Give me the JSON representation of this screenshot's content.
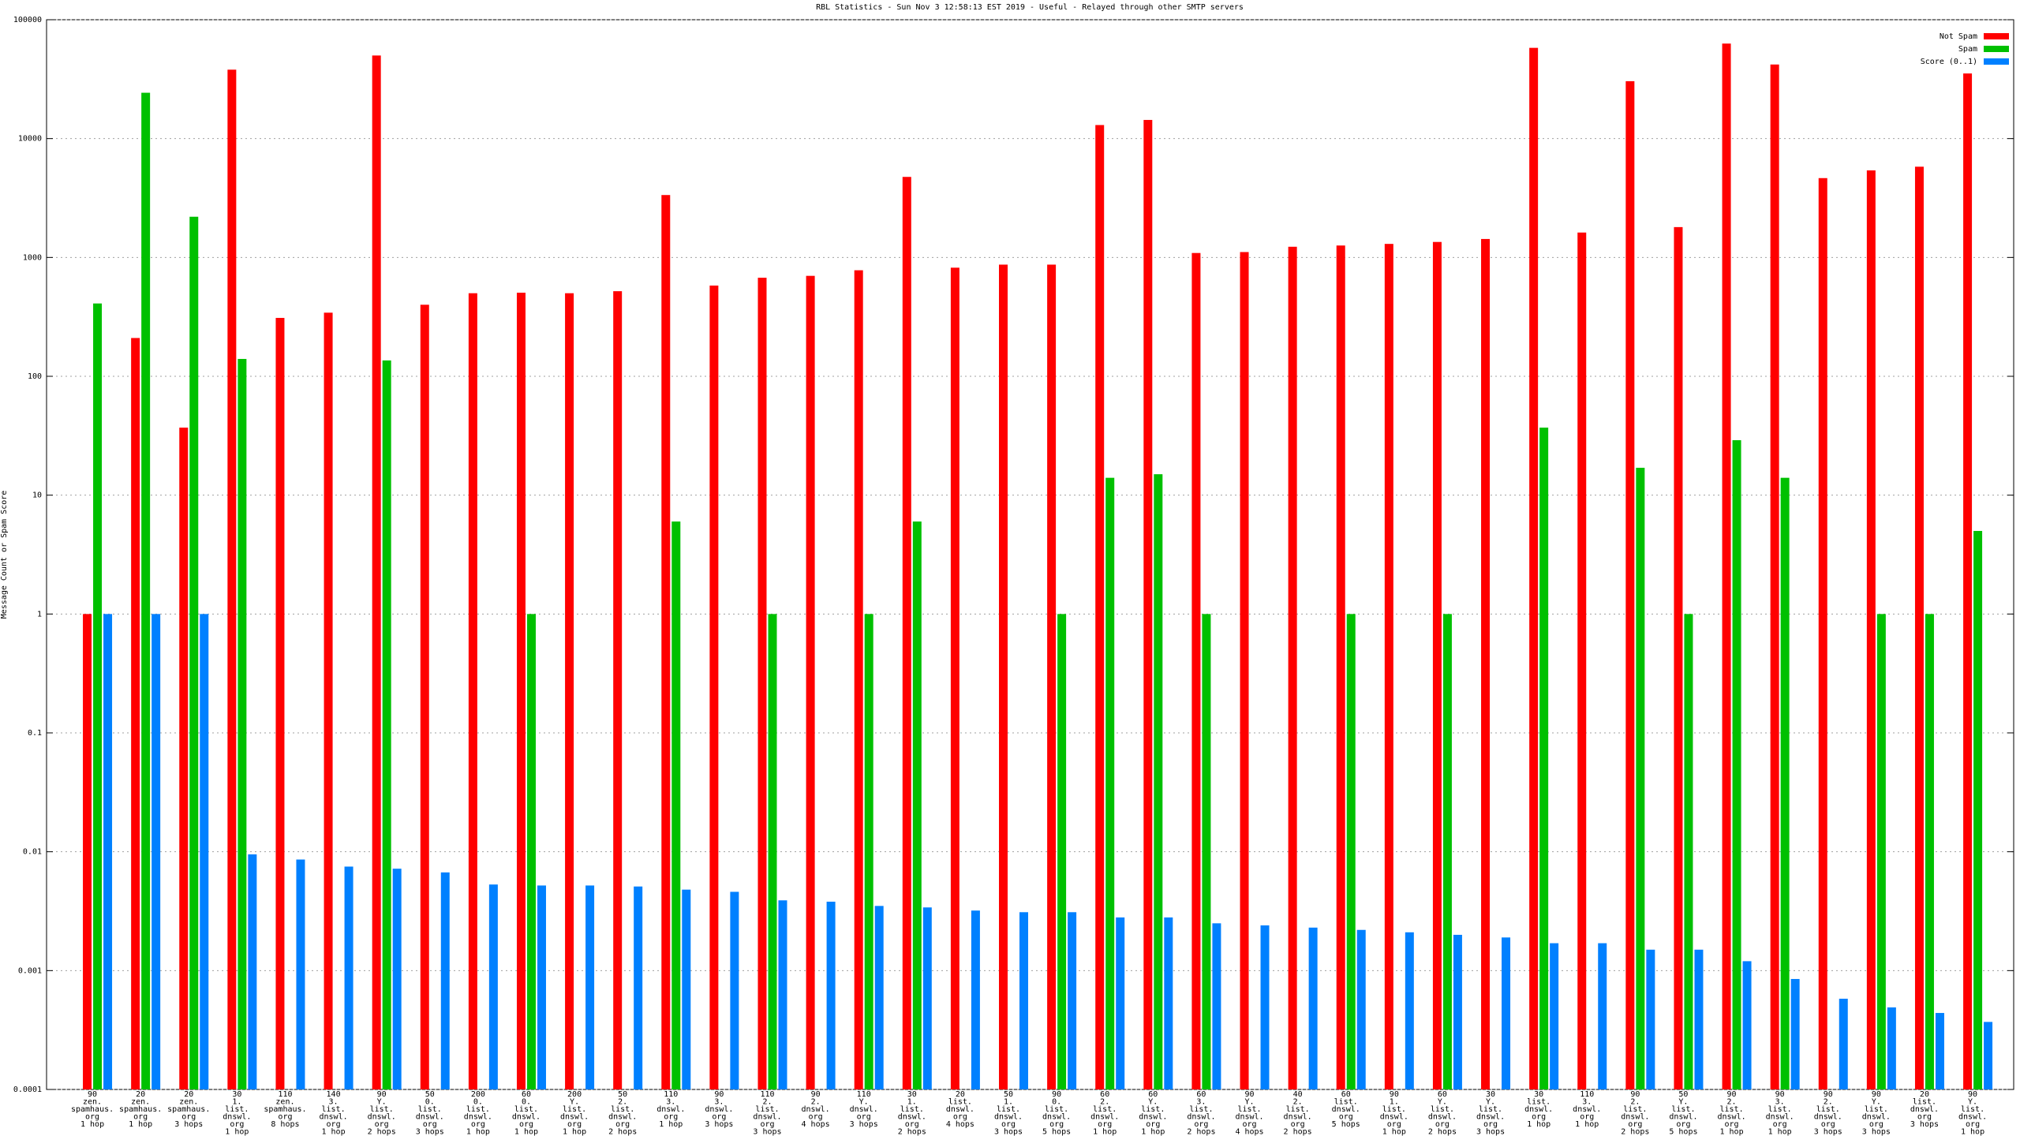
{
  "chart_data": {
    "type": "bar",
    "title": "RBL Statistics - Sun Nov  3 12:58:13 EST 2019 - Useful - Relayed through other SMTP servers",
    "y_label": "Message Count or Spam Score",
    "log_scale": true,
    "grid": true,
    "legend": "top-right",
    "ylim": [
      0.0001,
      100000
    ],
    "yticks": [
      0.0001,
      0.001,
      0.01,
      0.1,
      1,
      10,
      100,
      1000,
      10000,
      100000
    ],
    "categories": [
      [
        "90",
        "zen.",
        "spamhaus.",
        "org",
        "1 hop"
      ],
      [
        "20",
        "zen.",
        "spamhaus.",
        "org",
        "1 hop"
      ],
      [
        "20",
        "zen.",
        "spamhaus.",
        "org",
        "3 hops"
      ],
      [
        "30",
        "1.",
        "list.",
        "dnswl.",
        "org",
        "1 hop"
      ],
      [
        "110",
        "zen.",
        "spamhaus.",
        "org",
        "8 hops"
      ],
      [
        "140",
        "3.",
        "list.",
        "dnswl.",
        "org",
        "1 hop"
      ],
      [
        "90",
        "Y.",
        "list.",
        "dnswl.",
        "org",
        "2 hops"
      ],
      [
        "50",
        "0.",
        "list.",
        "dnswl.",
        "org",
        "3 hops"
      ],
      [
        "200",
        "0.",
        "list.",
        "dnswl.",
        "org",
        "1 hop"
      ],
      [
        "60",
        "0.",
        "list.",
        "dnswl.",
        "org",
        "1 hop"
      ],
      [
        "200",
        "Y.",
        "list.",
        "dnswl.",
        "org",
        "1 hop"
      ],
      [
        "50",
        "2.",
        "list.",
        "dnswl.",
        "org",
        "2 hops"
      ],
      [
        "110",
        "3.",
        "dnswl.",
        "org",
        "1 hop"
      ],
      [
        "90",
        "3.",
        "dnswl.",
        "org",
        "3 hops"
      ],
      [
        "110",
        "2.",
        "list.",
        "dnswl.",
        "org",
        "3 hops"
      ],
      [
        "90",
        "2.",
        "dnswl.",
        "org",
        "4 hops"
      ],
      [
        "110",
        "Y.",
        "dnswl.",
        "org",
        "3 hops"
      ],
      [
        "30",
        "1.",
        "list.",
        "dnswl.",
        "org",
        "2 hops"
      ],
      [
        "20",
        "list.",
        "dnswl.",
        "org",
        "4 hops"
      ],
      [
        "50",
        "1.",
        "list.",
        "dnswl.",
        "org",
        "3 hops"
      ],
      [
        "90",
        "0.",
        "list.",
        "dnswl.",
        "org",
        "5 hops"
      ],
      [
        "60",
        "2.",
        "list.",
        "dnswl.",
        "org",
        "1 hop"
      ],
      [
        "60",
        "Y.",
        "list.",
        "dnswl.",
        "org",
        "1 hop"
      ],
      [
        "60",
        "3.",
        "list.",
        "dnswl.",
        "org",
        "2 hops"
      ],
      [
        "90",
        "Y.",
        "list.",
        "dnswl.",
        "org",
        "4 hops"
      ],
      [
        "40",
        "2.",
        "list.",
        "dnswl.",
        "org",
        "2 hops"
      ],
      [
        "60",
        "list.",
        "dnswl.",
        "org",
        "5 hops"
      ],
      [
        "90",
        "1.",
        "list.",
        "dnswl.",
        "org",
        "1 hop"
      ],
      [
        "60",
        "Y.",
        "list.",
        "dnswl.",
        "org",
        "2 hops"
      ],
      [
        "30",
        "Y.",
        "list.",
        "dnswl.",
        "org",
        "3 hops"
      ],
      [
        "30",
        "list.",
        "dnswl.",
        "org",
        "1 hop"
      ],
      [
        "110",
        "3.",
        "dnswl.",
        "org",
        "1 hop"
      ],
      [
        "90",
        "2.",
        "list.",
        "dnswl.",
        "org",
        "2 hops"
      ],
      [
        "50",
        "Y.",
        "list.",
        "dnswl.",
        "org",
        "5 hops"
      ],
      [
        "90",
        "2.",
        "list.",
        "dnswl.",
        "org",
        "1 hop"
      ],
      [
        "90",
        "3.",
        "list.",
        "dnswl.",
        "org",
        "1 hop"
      ],
      [
        "90",
        "2.",
        "list.",
        "dnswl.",
        "org",
        "3 hops"
      ],
      [
        "90",
        "Y.",
        "list.",
        "dnswl.",
        "org",
        "3 hops"
      ],
      [
        "20",
        "list.",
        "dnswl.",
        "org",
        "3 hops"
      ],
      [
        "90",
        "Y.",
        "list.",
        "dnswl.",
        "org",
        "1 hop"
      ]
    ],
    "series": [
      {
        "name": "Not Spam",
        "color": "#ff0000",
        "values": [
          1,
          210,
          37,
          38000,
          310,
          343,
          50000,
          400,
          500,
          505,
          500,
          520,
          3350,
          580,
          675,
          700,
          780,
          4760,
          820,
          870,
          870,
          13000,
          14350,
          1090,
          1110,
          1230,
          1260,
          1300,
          1350,
          1430,
          58000,
          1620,
          30400,
          1800,
          63000,
          42000,
          4650,
          5400,
          5800,
          35300
        ]
      },
      {
        "name": "Spam",
        "color": "#00c000",
        "values": [
          410,
          24300,
          2200,
          140,
          null,
          null,
          136,
          null,
          null,
          1,
          null,
          null,
          6,
          null,
          1,
          null,
          1,
          6,
          null,
          null,
          1,
          14,
          15,
          1,
          null,
          null,
          1,
          null,
          1,
          null,
          37,
          null,
          17,
          1,
          29,
          14,
          null,
          1,
          1,
          5
        ]
      },
      {
        "name": "Score (0..1)",
        "color": "#0080ff",
        "values": [
          1,
          1,
          1,
          0.0095,
          0.0086,
          0.0075,
          0.0072,
          0.0067,
          0.0053,
          0.0052,
          0.0052,
          0.0051,
          0.0048,
          0.0046,
          0.0039,
          0.0038,
          0.0035,
          0.0034,
          0.0032,
          0.0031,
          0.0031,
          0.0028,
          0.0028,
          0.0025,
          0.0024,
          0.0023,
          0.0022,
          0.0021,
          0.002,
          0.0019,
          0.0017,
          0.0017,
          0.0015,
          0.0015,
          0.0012,
          0.00085,
          0.00058,
          0.00049,
          0.00044,
          0.00037
        ]
      }
    ]
  }
}
